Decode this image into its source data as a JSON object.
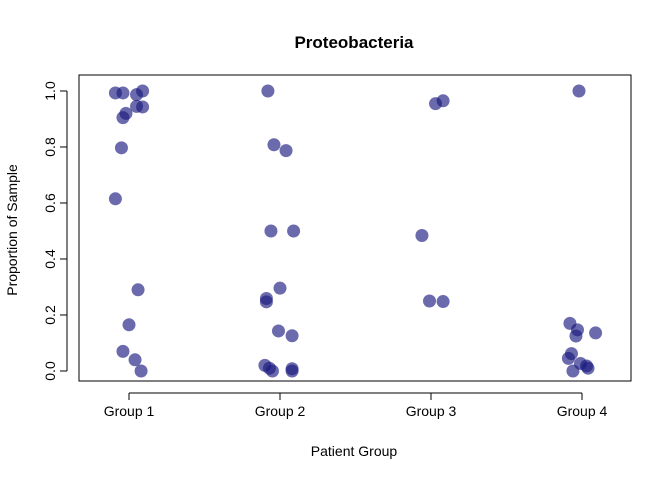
{
  "chart_data": {
    "type": "scatter",
    "title": "Proteobacteria",
    "xlabel": "Patient Group",
    "ylabel": "Proportion of Sample",
    "categories": [
      "Group 1",
      "Group 2",
      "Group 3",
      "Group 4"
    ],
    "ylim": [
      0,
      1
    ],
    "yticks": [
      "0.0",
      "0.2",
      "0.4",
      "0.6",
      "0.8",
      "1.0"
    ],
    "grid": false,
    "point_color": "#1a1a80",
    "points": [
      {
        "group": 1,
        "jitter": -0.09,
        "y": 0.993
      },
      {
        "group": 1,
        "jitter": -0.04,
        "y": 0.993
      },
      {
        "group": 1,
        "jitter": 0.05,
        "y": 0.987
      },
      {
        "group": 1,
        "jitter": 0.09,
        "y": 1.0
      },
      {
        "group": 1,
        "jitter": 0.05,
        "y": 0.945
      },
      {
        "group": 1,
        "jitter": 0.09,
        "y": 0.943
      },
      {
        "group": 1,
        "jitter": -0.02,
        "y": 0.92
      },
      {
        "group": 1,
        "jitter": -0.04,
        "y": 0.905
      },
      {
        "group": 1,
        "jitter": -0.05,
        "y": 0.797
      },
      {
        "group": 1,
        "jitter": -0.09,
        "y": 0.615
      },
      {
        "group": 1,
        "jitter": 0.06,
        "y": 0.29
      },
      {
        "group": 1,
        "jitter": 0.0,
        "y": 0.165
      },
      {
        "group": 1,
        "jitter": -0.04,
        "y": 0.07
      },
      {
        "group": 1,
        "jitter": 0.04,
        "y": 0.04
      },
      {
        "group": 1,
        "jitter": 0.08,
        "y": 0.0
      },
      {
        "group": 2,
        "jitter": -0.08,
        "y": 1.0
      },
      {
        "group": 2,
        "jitter": -0.04,
        "y": 0.808
      },
      {
        "group": 2,
        "jitter": 0.04,
        "y": 0.787
      },
      {
        "group": 2,
        "jitter": -0.06,
        "y": 0.5
      },
      {
        "group": 2,
        "jitter": 0.09,
        "y": 0.5
      },
      {
        "group": 2,
        "jitter": 0.0,
        "y": 0.296
      },
      {
        "group": 2,
        "jitter": -0.09,
        "y": 0.259
      },
      {
        "group": 2,
        "jitter": -0.09,
        "y": 0.247
      },
      {
        "group": 2,
        "jitter": -0.01,
        "y": 0.143
      },
      {
        "group": 2,
        "jitter": 0.08,
        "y": 0.126
      },
      {
        "group": 2,
        "jitter": -0.1,
        "y": 0.02
      },
      {
        "group": 2,
        "jitter": -0.07,
        "y": 0.01
      },
      {
        "group": 2,
        "jitter": -0.05,
        "y": 0.0
      },
      {
        "group": 2,
        "jitter": 0.08,
        "y": 0.008
      },
      {
        "group": 2,
        "jitter": 0.08,
        "y": 0.0
      },
      {
        "group": 3,
        "jitter": 0.03,
        "y": 0.955
      },
      {
        "group": 3,
        "jitter": 0.08,
        "y": 0.965
      },
      {
        "group": 3,
        "jitter": -0.06,
        "y": 0.484
      },
      {
        "group": 3,
        "jitter": -0.01,
        "y": 0.25
      },
      {
        "group": 3,
        "jitter": 0.08,
        "y": 0.248
      },
      {
        "group": 4,
        "jitter": -0.02,
        "y": 1.0
      },
      {
        "group": 4,
        "jitter": -0.08,
        "y": 0.17
      },
      {
        "group": 4,
        "jitter": -0.03,
        "y": 0.147
      },
      {
        "group": 4,
        "jitter": 0.09,
        "y": 0.136
      },
      {
        "group": 4,
        "jitter": -0.04,
        "y": 0.125
      },
      {
        "group": 4,
        "jitter": -0.07,
        "y": 0.062
      },
      {
        "group": 4,
        "jitter": -0.09,
        "y": 0.045
      },
      {
        "group": 4,
        "jitter": -0.01,
        "y": 0.027
      },
      {
        "group": 4,
        "jitter": 0.03,
        "y": 0.018
      },
      {
        "group": 4,
        "jitter": 0.04,
        "y": 0.01
      },
      {
        "group": 4,
        "jitter": -0.06,
        "y": 0.0
      }
    ]
  }
}
